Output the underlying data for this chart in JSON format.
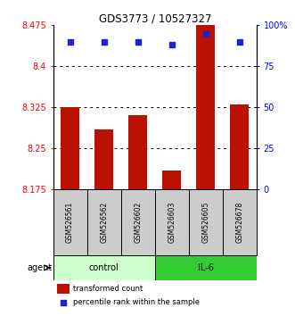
{
  "title": "GDS3773 / 10527327",
  "samples": [
    "GSM526561",
    "GSM526562",
    "GSM526602",
    "GSM526603",
    "GSM526605",
    "GSM526678"
  ],
  "bar_values": [
    8.325,
    8.285,
    8.31,
    8.21,
    8.475,
    8.33
  ],
  "percentile_values": [
    90,
    90,
    90,
    88,
    95,
    90
  ],
  "ymin": 8.175,
  "ymax": 8.475,
  "yright_min": 0,
  "yright_max": 100,
  "yticks_left": [
    8.175,
    8.25,
    8.325,
    8.4,
    8.475
  ],
  "yticks_right": [
    0,
    25,
    50,
    75,
    100
  ],
  "ytick_labels_left": [
    "8.175",
    "8.25",
    "8.325",
    "8.4",
    "8.475"
  ],
  "ytick_labels_right": [
    "0",
    "25",
    "50",
    "75",
    "100%"
  ],
  "bar_color": "#bb1100",
  "dot_color": "#2222cc",
  "control_color": "#ccffcc",
  "il6_color": "#33cc33",
  "sample_box_color": "#cccccc",
  "grid_lines": [
    8.25,
    8.325,
    8.4
  ],
  "legend_bar_label": "transformed count",
  "legend_dot_label": "percentile rank within the sample",
  "bar_width": 0.55,
  "title_fontsize": 8.5,
  "tick_fontsize": 7,
  "sample_fontsize": 5.5,
  "group_fontsize": 7,
  "legend_fontsize": 6
}
